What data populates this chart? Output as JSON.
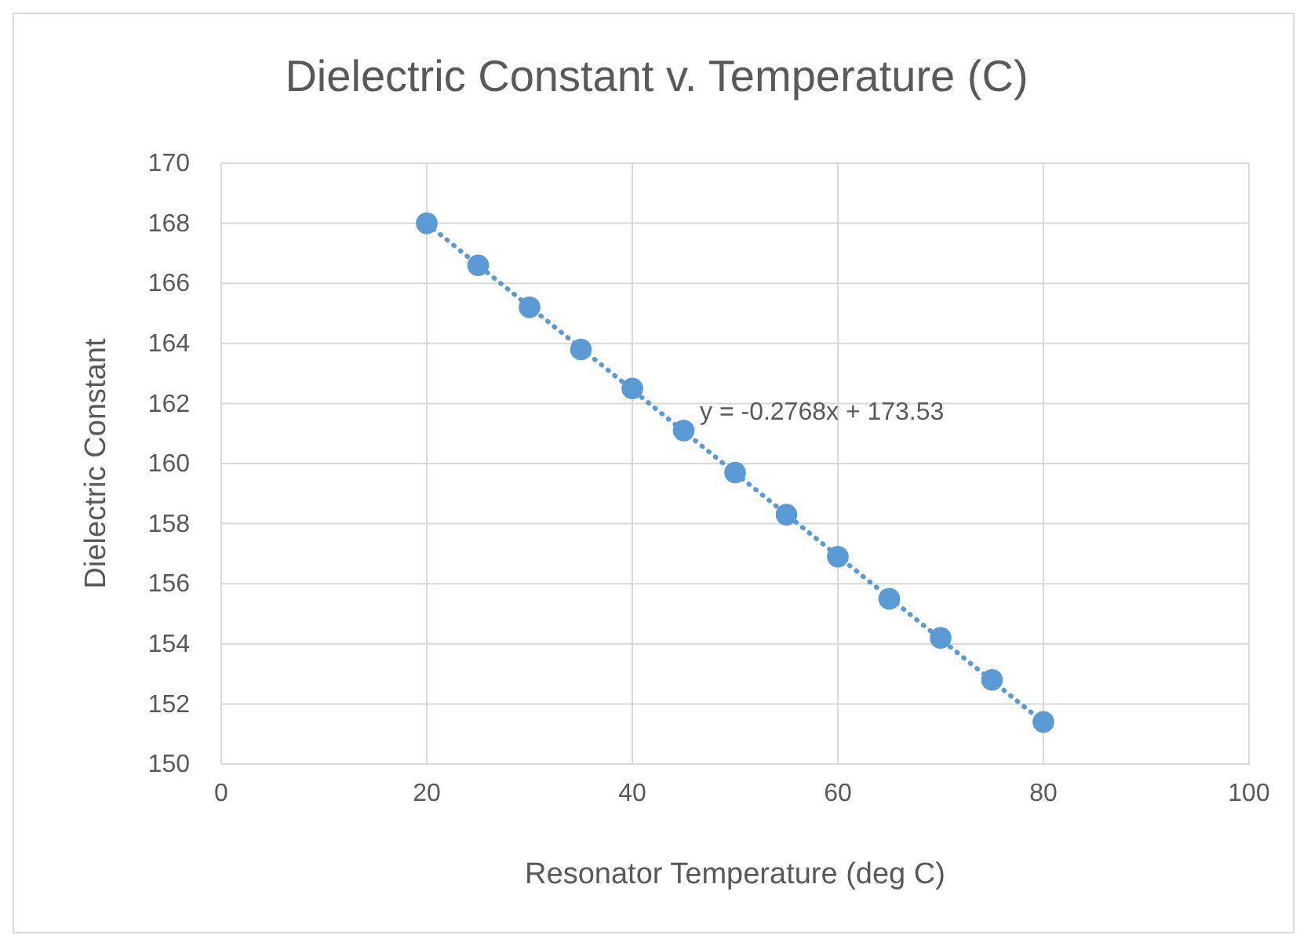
{
  "chart_data": {
    "type": "scatter",
    "title": "Dielectric Constant v. Temperature (C)",
    "xlabel": "Resonator Temperature (deg C)",
    "ylabel": "Dielectric Constant",
    "xlim": [
      0,
      100
    ],
    "xticks": [
      0,
      20,
      40,
      60,
      80,
      100
    ],
    "ylim": [
      150,
      170
    ],
    "yticks": [
      150,
      152,
      154,
      156,
      158,
      160,
      162,
      164,
      166,
      168,
      170
    ],
    "grid": true,
    "marker": "circle",
    "series": [
      {
        "color": "#5b9bd5",
        "x": [
          20,
          25,
          30,
          35,
          40,
          45,
          50,
          55,
          60,
          65,
          70,
          75,
          80
        ],
        "values": [
          168.0,
          166.6,
          165.2,
          163.8,
          162.5,
          161.1,
          159.7,
          158.3,
          156.9,
          155.5,
          154.2,
          152.8,
          151.4
        ]
      },
      {
        "type": "line",
        "color": "#5b9bd5",
        "line_style": "dotted",
        "marker": "none",
        "x": [
          20,
          80
        ],
        "values": [
          167.99,
          151.39
        ]
      }
    ],
    "annotations": [
      "y = -0.2768x + 173.53"
    ]
  }
}
